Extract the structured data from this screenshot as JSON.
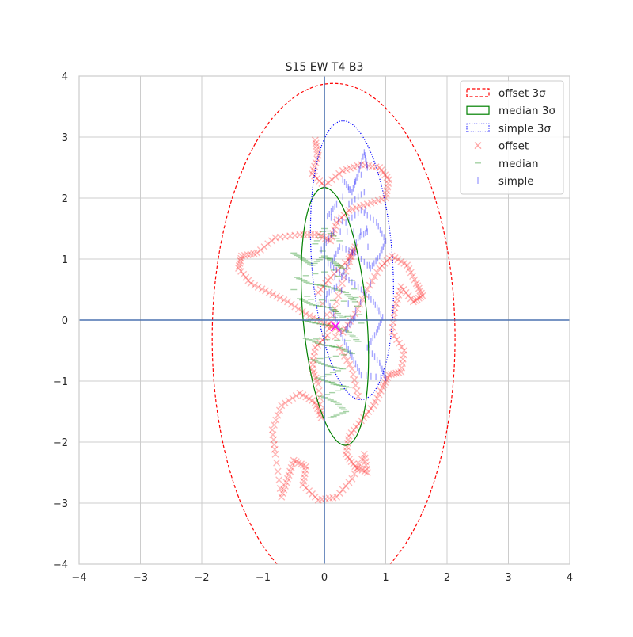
{
  "chart_data": {
    "type": "scatter",
    "title": "S15 EW T4 B3",
    "xlabel": "",
    "ylabel": "",
    "xlim": [
      -4,
      4
    ],
    "ylim": [
      -4,
      4
    ],
    "x_ticks": [
      -4,
      -3,
      -2,
      -1,
      0,
      1,
      2,
      3,
      4
    ],
    "y_ticks": [
      -4,
      -3,
      -2,
      -1,
      0,
      1,
      2,
      3,
      4
    ],
    "x_tick_labels": [
      "−4",
      "−3",
      "−2",
      "−1",
      "0",
      "1",
      "2",
      "3",
      "4"
    ],
    "y_tick_labels": [
      "−4",
      "−3",
      "−2",
      "−1",
      "0",
      "1",
      "2",
      "3",
      "4"
    ],
    "grid": true,
    "legend_position": "top-right",
    "axis_lines": {
      "x": 0,
      "y": 0,
      "color": "#4c72b0"
    },
    "legend": [
      {
        "label": "offset 3σ",
        "kind": "ellipse",
        "color": "#ff0000",
        "style": "dashed"
      },
      {
        "label": "median 3σ",
        "kind": "ellipse",
        "color": "#008000",
        "style": "solid"
      },
      {
        "label": "simple 3σ",
        "kind": "ellipse",
        "color": "#0000ff",
        "style": "dotted"
      },
      {
        "label": "offset",
        "kind": "marker",
        "marker": "x",
        "color": "#ff0000"
      },
      {
        "label": "median",
        "kind": "marker",
        "marker": "_",
        "color": "#008000"
      },
      {
        "label": "simple",
        "kind": "marker",
        "marker": "|",
        "color": "#0000ff"
      }
    ],
    "ellipses": [
      {
        "name": "offset 3σ",
        "center": [
          0.15,
          -0.3
        ],
        "semi_x": 1.98,
        "semi_y": 4.18,
        "color": "#ff0000",
        "style": "dashed"
      },
      {
        "name": "median 3σ",
        "center": [
          0.17,
          0.06
        ],
        "semi_x": 0.52,
        "semi_y": 2.12,
        "tilt_deg": -5,
        "color": "#008000",
        "style": "solid"
      },
      {
        "name": "simple 3σ",
        "center": [
          0.45,
          0.98
        ],
        "semi_x": 0.66,
        "semi_y": 2.29,
        "tilt_deg": -4,
        "color": "#0000ff",
        "style": "dotted"
      }
    ],
    "series": [
      {
        "name": "offset",
        "marker": "x",
        "color": "#ff0000",
        "points": [
          [
            -0.15,
            2.95
          ],
          [
            -0.1,
            2.7
          ],
          [
            -0.2,
            2.4
          ],
          [
            0.0,
            2.2
          ],
          [
            0.3,
            2.45
          ],
          [
            0.6,
            2.55
          ],
          [
            0.9,
            2.5
          ],
          [
            1.05,
            2.3
          ],
          [
            1.0,
            2.0
          ],
          [
            0.7,
            1.9
          ],
          [
            0.4,
            1.8
          ],
          [
            0.2,
            1.6
          ],
          [
            0.1,
            1.3
          ],
          [
            -0.1,
            1.4
          ],
          [
            -0.4,
            1.4
          ],
          [
            -0.8,
            1.35
          ],
          [
            -1.1,
            1.1
          ],
          [
            -1.35,
            1.05
          ],
          [
            -1.4,
            0.85
          ],
          [
            -1.2,
            0.6
          ],
          [
            -0.9,
            0.45
          ],
          [
            -0.6,
            0.3
          ],
          [
            -0.3,
            0.1
          ],
          [
            0.0,
            -0.05
          ],
          [
            0.3,
            -0.2
          ],
          [
            0.5,
            0.1
          ],
          [
            0.7,
            0.5
          ],
          [
            0.9,
            0.85
          ],
          [
            1.1,
            1.05
          ],
          [
            1.35,
            0.9
          ],
          [
            1.5,
            0.6
          ],
          [
            1.6,
            0.4
          ],
          [
            1.45,
            0.3
          ],
          [
            1.25,
            0.55
          ],
          [
            1.15,
            0.2
          ],
          [
            1.1,
            -0.2
          ],
          [
            1.3,
            -0.5
          ],
          [
            1.25,
            -0.85
          ],
          [
            1.05,
            -0.9
          ],
          [
            0.95,
            -1.1
          ],
          [
            0.8,
            -1.4
          ],
          [
            0.6,
            -1.65
          ],
          [
            0.4,
            -1.9
          ],
          [
            0.35,
            -2.2
          ],
          [
            0.5,
            -2.4
          ],
          [
            0.7,
            -2.5
          ],
          [
            0.65,
            -2.2
          ],
          [
            0.45,
            -2.6
          ],
          [
            0.2,
            -2.9
          ],
          [
            -0.1,
            -2.95
          ],
          [
            -0.35,
            -2.7
          ],
          [
            -0.3,
            -2.4
          ],
          [
            -0.5,
            -2.3
          ],
          [
            -0.6,
            -2.6
          ],
          [
            -0.7,
            -2.9
          ],
          [
            -0.8,
            -2.2
          ],
          [
            -0.85,
            -1.8
          ],
          [
            -0.7,
            -1.4
          ],
          [
            -0.4,
            -1.2
          ],
          [
            -0.15,
            -1.35
          ],
          [
            -0.05,
            -1.6
          ],
          [
            -0.1,
            -1.05
          ],
          [
            -0.2,
            -0.8
          ],
          [
            -0.15,
            -0.45
          ],
          [
            0.05,
            -0.25
          ],
          [
            0.2,
            0.3
          ],
          [
            0.35,
            0.8
          ],
          [
            0.5,
            1.2
          ],
          [
            0.4,
            1.0
          ],
          [
            0.1,
            0.7
          ],
          [
            -0.1,
            0.45
          ],
          [
            0.25,
            -0.45
          ],
          [
            0.45,
            -0.8
          ],
          [
            0.55,
            -1.25
          ]
        ]
      },
      {
        "name": "median",
        "marker": "_",
        "color": "#008000",
        "points": [
          [
            -0.5,
            1.1
          ],
          [
            -0.35,
            1.0
          ],
          [
            -0.2,
            0.9
          ],
          [
            0.0,
            1.05
          ],
          [
            0.15,
            0.95
          ],
          [
            0.3,
            0.85
          ],
          [
            -0.45,
            0.7
          ],
          [
            -0.25,
            0.6
          ],
          [
            0.05,
            0.55
          ],
          [
            0.35,
            0.45
          ],
          [
            0.5,
            0.3
          ],
          [
            -0.4,
            0.35
          ],
          [
            -0.2,
            0.25
          ],
          [
            0.1,
            0.2
          ],
          [
            0.3,
            0.05
          ],
          [
            -0.35,
            0.0
          ],
          [
            -0.15,
            -0.05
          ],
          [
            0.15,
            -0.1
          ],
          [
            0.4,
            -0.2
          ],
          [
            0.55,
            -0.35
          ],
          [
            -0.3,
            -0.3
          ],
          [
            -0.05,
            -0.4
          ],
          [
            0.25,
            -0.45
          ],
          [
            0.45,
            -0.55
          ],
          [
            -0.2,
            -0.65
          ],
          [
            0.05,
            -0.75
          ],
          [
            0.3,
            -0.8
          ],
          [
            -0.1,
            -0.95
          ],
          [
            0.15,
            -1.05
          ],
          [
            0.4,
            -1.1
          ],
          [
            -0.05,
            -1.25
          ],
          [
            0.2,
            -1.35
          ],
          [
            0.35,
            -1.5
          ],
          [
            0.1,
            -1.6
          ],
          [
            0.25,
            1.3
          ],
          [
            0.0,
            1.5
          ],
          [
            -0.15,
            1.25
          ],
          [
            0.45,
            0.65
          ],
          [
            0.6,
            -0.05
          ],
          [
            -0.5,
            0.5
          ]
        ]
      },
      {
        "name": "simple",
        "marker": "|",
        "color": "#0000ff",
        "points": [
          [
            0.3,
            2.3
          ],
          [
            0.45,
            2.1
          ],
          [
            0.55,
            2.4
          ],
          [
            0.65,
            2.75
          ],
          [
            0.7,
            2.5
          ],
          [
            0.2,
            1.9
          ],
          [
            0.05,
            1.7
          ],
          [
            0.35,
            1.6
          ],
          [
            0.6,
            1.8
          ],
          [
            0.85,
            1.6
          ],
          [
            1.0,
            1.3
          ],
          [
            0.9,
            1.05
          ],
          [
            0.75,
            0.85
          ],
          [
            0.5,
            1.1
          ],
          [
            0.25,
            1.2
          ],
          [
            0.1,
            0.9
          ],
          [
            0.35,
            0.7
          ],
          [
            0.6,
            0.5
          ],
          [
            0.8,
            0.3
          ],
          [
            0.95,
            0.05
          ],
          [
            0.85,
            -0.2
          ],
          [
            0.7,
            -0.45
          ],
          [
            0.9,
            -0.7
          ],
          [
            1.0,
            -0.95
          ],
          [
            0.6,
            -0.9
          ],
          [
            0.45,
            -0.6
          ],
          [
            0.3,
            -0.3
          ],
          [
            0.15,
            0.1
          ],
          [
            0.0,
            0.4
          ],
          [
            0.2,
            0.55
          ],
          [
            0.4,
            0.95
          ],
          [
            0.55,
            1.35
          ],
          [
            0.7,
            1.45
          ],
          [
            0.15,
            1.45
          ],
          [
            -0.05,
            1.15
          ],
          [
            0.5,
            0.05
          ],
          [
            0.35,
            -0.15
          ],
          [
            0.75,
            0.6
          ],
          [
            0.65,
            2.1
          ],
          [
            0.4,
            1.9
          ]
        ]
      }
    ],
    "origin_marker": {
      "x": 0.18,
      "y": -0.1,
      "color": "#ff00ff",
      "marker": "x"
    }
  }
}
